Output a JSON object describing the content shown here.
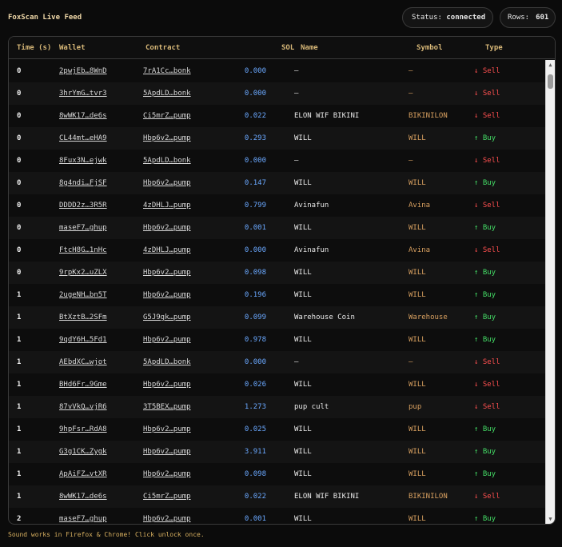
{
  "header": {
    "title": "FoxScan Live Feed",
    "status_label": "Status:",
    "status_value": "connected",
    "rows_label": "Rows:",
    "rows_value": "601"
  },
  "columns": [
    "Time (s)",
    "Wallet",
    "Contract",
    "SOL",
    "Name",
    "Symbol",
    "Type"
  ],
  "rows": [
    {
      "time": "0",
      "wallet": "2pwjEb…8WnD",
      "contract": "7rA1Cc…bonk",
      "sol": "0.000",
      "name": "—",
      "symbol": "—",
      "type": "↓ Sell"
    },
    {
      "time": "0",
      "wallet": "3hrYmG…tvr3",
      "contract": "5ApdLD…bonk",
      "sol": "0.000",
      "name": "—",
      "symbol": "—",
      "type": "↓ Sell"
    },
    {
      "time": "0",
      "wallet": "8wWK17…de6s",
      "contract": "Ci5mrZ…pump",
      "sol": "0.022",
      "name": "ELON WIF BIKINI",
      "symbol": "BIKINILON",
      "type": "↓ Sell"
    },
    {
      "time": "0",
      "wallet": "CL44mt…eHA9",
      "contract": "Hbp6v2…pump",
      "sol": "0.293",
      "name": "WILL",
      "symbol": "WILL",
      "type": "↑ Buy"
    },
    {
      "time": "0",
      "wallet": "8Fux3N…ejwk",
      "contract": "5ApdLD…bonk",
      "sol": "0.000",
      "name": "—",
      "symbol": "—",
      "type": "↓ Sell"
    },
    {
      "time": "0",
      "wallet": "8g4ndi…FjSF",
      "contract": "Hbp6v2…pump",
      "sol": "0.147",
      "name": "WILL",
      "symbol": "WILL",
      "type": "↑ Buy"
    },
    {
      "time": "0",
      "wallet": "DDDD2z…3R5R",
      "contract": "4zDHLJ…pump",
      "sol": "0.799",
      "name": "Avinafun",
      "symbol": "Avina",
      "type": "↓ Sell"
    },
    {
      "time": "0",
      "wallet": "maseF7…ghup",
      "contract": "Hbp6v2…pump",
      "sol": "0.001",
      "name": "WILL",
      "symbol": "WILL",
      "type": "↑ Buy"
    },
    {
      "time": "0",
      "wallet": "FtcH8G…1nHc",
      "contract": "4zDHLJ…pump",
      "sol": "0.000",
      "name": "Avinafun",
      "symbol": "Avina",
      "type": "↓ Sell"
    },
    {
      "time": "0",
      "wallet": "9rpKx2…uZLX",
      "contract": "Hbp6v2…pump",
      "sol": "0.098",
      "name": "WILL",
      "symbol": "WILL",
      "type": "↑ Buy"
    },
    {
      "time": "1",
      "wallet": "2ugeNH…bn5T",
      "contract": "Hbp6v2…pump",
      "sol": "0.196",
      "name": "WILL",
      "symbol": "WILL",
      "type": "↑ Buy"
    },
    {
      "time": "1",
      "wallet": "BtXztB…2SFm",
      "contract": "G5J9gk…pump",
      "sol": "0.099",
      "name": "Warehouse Coin",
      "symbol": "Warehouse",
      "type": "↑ Buy"
    },
    {
      "time": "1",
      "wallet": "9qdY6H…5Fd1",
      "contract": "Hbp6v2…pump",
      "sol": "0.978",
      "name": "WILL",
      "symbol": "WILL",
      "type": "↑ Buy"
    },
    {
      "time": "1",
      "wallet": "AEbdXC…wjot",
      "contract": "5ApdLD…bonk",
      "sol": "0.000",
      "name": "—",
      "symbol": "—",
      "type": "↓ Sell"
    },
    {
      "time": "1",
      "wallet": "BHd6Fr…9Gme",
      "contract": "Hbp6v2…pump",
      "sol": "0.026",
      "name": "WILL",
      "symbol": "WILL",
      "type": "↓ Sell"
    },
    {
      "time": "1",
      "wallet": "87vVkQ…vjR6",
      "contract": "3T5BEX…pump",
      "sol": "1.273",
      "name": "pup cult",
      "symbol": "pup",
      "type": "↓ Sell"
    },
    {
      "time": "1",
      "wallet": "9hpFsr…RdA8",
      "contract": "Hbp6v2…pump",
      "sol": "0.025",
      "name": "WILL",
      "symbol": "WILL",
      "type": "↑ Buy"
    },
    {
      "time": "1",
      "wallet": "G3g1CK…Zygk",
      "contract": "Hbp6v2…pump",
      "sol": "3.911",
      "name": "WILL",
      "symbol": "WILL",
      "type": "↑ Buy"
    },
    {
      "time": "1",
      "wallet": "ApAiFZ…vtXR",
      "contract": "Hbp6v2…pump",
      "sol": "0.098",
      "name": "WILL",
      "symbol": "WILL",
      "type": "↑ Buy"
    },
    {
      "time": "1",
      "wallet": "8wWK17…de6s",
      "contract": "Ci5mrZ…pump",
      "sol": "0.022",
      "name": "ELON WIF BIKINI",
      "symbol": "BIKINILON",
      "type": "↓ Sell"
    },
    {
      "time": "2",
      "wallet": "maseF7…ghup",
      "contract": "Hbp6v2…pump",
      "sol": "0.001",
      "name": "WILL",
      "symbol": "WILL",
      "type": "↑ Buy"
    }
  ],
  "footer": {
    "note": "Sound works in Firefox & Chrome! Click unlock once."
  },
  "colors": {
    "sell": "#ff5050",
    "buy": "#44dd66",
    "sol": "#6aa8ff",
    "symbol": "#d8a060",
    "header_text": "#d8b878"
  },
  "icons": {
    "status_dot": "status-dot-icon",
    "scroll_up": "scroll-up-arrow-icon",
    "scroll_down": "scroll-down-arrow-icon"
  }
}
